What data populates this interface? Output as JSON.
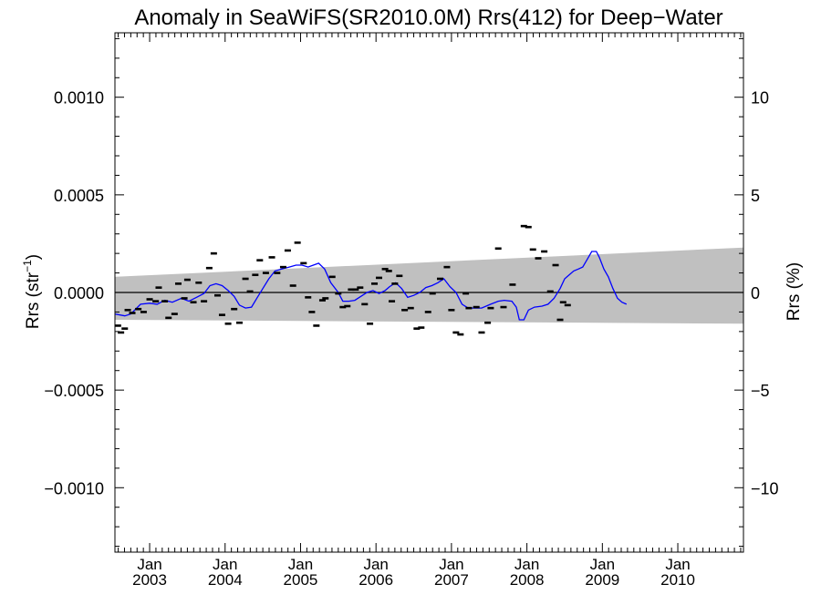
{
  "chart_data": {
    "type": "scatter",
    "title": "Anomaly in SeaWiFS(SR2010.0M) Rrs(412) for Deep−Water",
    "ylabel_left": "Rrs (str",
    "ylabel_left_sup": "−1",
    "ylabel_left_close": ")",
    "ylabel_right": "Rrs (%)",
    "xlim": [
      2002.54,
      2010.87
    ],
    "ylim": [
      -0.00133,
      0.00133
    ],
    "y2lim": [
      -13.3,
      13.3
    ],
    "grid": false,
    "x_tick_labels": [
      {
        "x": 2003.0,
        "month": "Jan",
        "year": "2003"
      },
      {
        "x": 2004.0,
        "month": "Jan",
        "year": "2004"
      },
      {
        "x": 2005.0,
        "month": "Jan",
        "year": "2005"
      },
      {
        "x": 2006.0,
        "month": "Jan",
        "year": "2006"
      },
      {
        "x": 2007.0,
        "month": "Jan",
        "year": "2007"
      },
      {
        "x": 2008.0,
        "month": "Jan",
        "year": "2008"
      },
      {
        "x": 2009.0,
        "month": "Jan",
        "year": "2009"
      },
      {
        "x": 2010.0,
        "month": "Jan",
        "year": "2010"
      }
    ],
    "y_left_ticks": [
      {
        "value": 0.001,
        "label": "0.0010"
      },
      {
        "value": 0.0005,
        "label": "0.0005"
      },
      {
        "value": 0.0,
        "label": "0.0000"
      },
      {
        "value": -0.0005,
        "label": "−0.0005"
      },
      {
        "value": -0.001,
        "label": "−0.0010"
      }
    ],
    "y_right_ticks": [
      {
        "value": 10,
        "label": "10"
      },
      {
        "value": 5,
        "label": "5"
      },
      {
        "value": 0,
        "label": "0"
      },
      {
        "value": -5,
        "label": "−5"
      },
      {
        "value": -10,
        "label": "−10"
      }
    ],
    "zero_line": 0.0,
    "uncertainty_band": {
      "x": [
        2002.54,
        2010.87
      ],
      "upper": [
        8e-05,
        0.00023
      ],
      "lower": [
        -0.00014,
        -0.00016
      ],
      "color": "#c0c0c0"
    },
    "series": [
      {
        "kind": "points",
        "color": "#000000",
        "points": [
          [
            2002.58,
            -0.00017
          ],
          [
            2002.62,
            -0.000205
          ],
          [
            2002.67,
            -0.000185
          ],
          [
            2002.71,
            -9e-05
          ],
          [
            2002.77,
            -0.000105
          ],
          [
            2002.85,
            -8.5e-05
          ],
          [
            2002.92,
            -0.0001
          ],
          [
            2003.0,
            -3.5e-05
          ],
          [
            2003.08,
            -4.5e-05
          ],
          [
            2003.12,
            2.5e-05
          ],
          [
            2003.2,
            -4.5e-05
          ],
          [
            2003.25,
            -0.00013
          ],
          [
            2003.33,
            -0.00011
          ],
          [
            2003.38,
            4.5e-05
          ],
          [
            2003.46,
            -3e-05
          ],
          [
            2003.5,
            6.5e-05
          ],
          [
            2003.58,
            -5e-05
          ],
          [
            2003.65,
            5e-05
          ],
          [
            2003.72,
            -4.5e-05
          ],
          [
            2003.79,
            0.000125
          ],
          [
            2003.85,
            0.0002
          ],
          [
            2003.9,
            -1.5e-05
          ],
          [
            2003.96,
            -0.000115
          ],
          [
            2004.04,
            -0.00016
          ],
          [
            2004.12,
            -8.5e-05
          ],
          [
            2004.19,
            -0.000155
          ],
          [
            2004.27,
            7e-05
          ],
          [
            2004.33,
            5e-06
          ],
          [
            2004.4,
            9e-05
          ],
          [
            2004.46,
            0.000165
          ],
          [
            2004.54,
            0.0001
          ],
          [
            2004.62,
            0.00018
          ],
          [
            2004.69,
            0.0001
          ],
          [
            2004.77,
            0.00013
          ],
          [
            2004.83,
            0.000215
          ],
          [
            2004.9,
            3.5e-05
          ],
          [
            2004.96,
            0.000255
          ],
          [
            2005.04,
            0.00015
          ],
          [
            2005.1,
            -2.5e-05
          ],
          [
            2005.15,
            -0.0001
          ],
          [
            2005.21,
            -0.00017
          ],
          [
            2005.29,
            -4e-05
          ],
          [
            2005.33,
            -3e-05
          ],
          [
            2005.42,
            8e-05
          ],
          [
            2005.5,
            -5e-06
          ],
          [
            2005.56,
            -7.5e-05
          ],
          [
            2005.62,
            -7e-05
          ],
          [
            2005.67,
            1.5e-05
          ],
          [
            2005.73,
            1.5e-05
          ],
          [
            2005.79,
            2.5e-05
          ],
          [
            2005.85,
            -6e-05
          ],
          [
            2005.92,
            -0.00016
          ],
          [
            2005.98,
            4.5e-05
          ],
          [
            2006.04,
            7.5e-05
          ],
          [
            2006.12,
            0.00012
          ],
          [
            2006.17,
            0.00011
          ],
          [
            2006.21,
            -4.5e-05
          ],
          [
            2006.25,
            4.5e-05
          ],
          [
            2006.31,
            8.5e-05
          ],
          [
            2006.38,
            -9e-05
          ],
          [
            2006.46,
            -8e-05
          ],
          [
            2006.54,
            -0.000185
          ],
          [
            2006.6,
            -0.00018
          ],
          [
            2006.69,
            -0.0001
          ],
          [
            2006.75,
            -5e-06
          ],
          [
            2006.85,
            7e-05
          ],
          [
            2006.94,
            0.00013
          ],
          [
            2007.0,
            -9e-05
          ],
          [
            2007.06,
            -0.000205
          ],
          [
            2007.12,
            -0.000215
          ],
          [
            2007.19,
            -5e-06
          ],
          [
            2007.23,
            -8e-05
          ],
          [
            2007.33,
            -7.5e-05
          ],
          [
            2007.4,
            -0.000205
          ],
          [
            2007.48,
            -0.000155
          ],
          [
            2007.52,
            -8e-05
          ],
          [
            2007.62,
            0.000225
          ],
          [
            2007.69,
            -7.5e-05
          ],
          [
            2007.81,
            4e-05
          ],
          [
            2007.96,
            0.00034
          ],
          [
            2008.02,
            0.000335
          ],
          [
            2008.08,
            0.00022
          ],
          [
            2008.15,
            0.000175
          ],
          [
            2008.23,
            0.00021
          ],
          [
            2008.31,
            5e-06
          ],
          [
            2008.38,
            0.00014
          ],
          [
            2008.44,
            -0.00014
          ],
          [
            2008.48,
            -5e-05
          ],
          [
            2008.54,
            -6.5e-05
          ]
        ]
      },
      {
        "kind": "line",
        "name": "",
        "color": "#0000ff",
        "points": [
          [
            2002.54,
            -0.00011
          ],
          [
            2002.67,
            -0.00012
          ],
          [
            2002.75,
            -0.00011
          ],
          [
            2002.88,
            -6e-05
          ],
          [
            2003.0,
            -5.5e-05
          ],
          [
            2003.1,
            -6e-05
          ],
          [
            2003.2,
            -4e-05
          ],
          [
            2003.3,
            -5e-05
          ],
          [
            2003.42,
            -3e-05
          ],
          [
            2003.52,
            -4.5e-05
          ],
          [
            2003.62,
            -2.5e-05
          ],
          [
            2003.72,
            -5e-06
          ],
          [
            2003.8,
            3.5e-05
          ],
          [
            2003.88,
            4.5e-05
          ],
          [
            2003.96,
            3.5e-05
          ],
          [
            2004.04,
            1e-05
          ],
          [
            2004.12,
            -2e-05
          ],
          [
            2004.19,
            -6.5e-05
          ],
          [
            2004.27,
            -8e-05
          ],
          [
            2004.35,
            -7.5e-05
          ],
          [
            2004.42,
            -3e-05
          ],
          [
            2004.5,
            2e-05
          ],
          [
            2004.58,
            7e-05
          ],
          [
            2004.66,
            0.00011
          ],
          [
            2004.75,
            0.00012
          ],
          [
            2004.85,
            0.00013
          ],
          [
            2004.94,
            0.00014
          ],
          [
            2005.02,
            0.00014
          ],
          [
            2005.1,
            0.00013
          ],
          [
            2005.17,
            0.00014
          ],
          [
            2005.24,
            0.00015
          ],
          [
            2005.32,
            0.00012
          ],
          [
            2005.4,
            5e-05
          ],
          [
            2005.5,
            0.0
          ],
          [
            2005.56,
            -4.5e-05
          ],
          [
            2005.64,
            -4.5e-05
          ],
          [
            2005.72,
            -4e-05
          ],
          [
            2005.8,
            -2e-05
          ],
          [
            2005.88,
            0.0
          ],
          [
            2005.96,
            1e-05
          ],
          [
            2006.04,
            -5e-06
          ],
          [
            2006.12,
            1e-05
          ],
          [
            2006.18,
            3e-05
          ],
          [
            2006.26,
            5e-05
          ],
          [
            2006.34,
            2e-05
          ],
          [
            2006.42,
            -2.5e-05
          ],
          [
            2006.5,
            -1.5e-05
          ],
          [
            2006.58,
            0.0
          ],
          [
            2006.66,
            2.5e-05
          ],
          [
            2006.74,
            3.5e-05
          ],
          [
            2006.82,
            5e-05
          ],
          [
            2006.9,
            7e-05
          ],
          [
            2006.98,
            3e-05
          ],
          [
            2007.06,
            0.0
          ],
          [
            2007.14,
            -6e-05
          ],
          [
            2007.22,
            -8e-05
          ],
          [
            2007.3,
            -8e-05
          ],
          [
            2007.4,
            -8e-05
          ],
          [
            2007.52,
            -6e-05
          ],
          [
            2007.62,
            -4.5e-05
          ],
          [
            2007.7,
            -4e-05
          ],
          [
            2007.8,
            -4.5e-05
          ],
          [
            2007.86,
            -7.5e-05
          ],
          [
            2007.9,
            -0.00014
          ],
          [
            2007.96,
            -0.00014
          ],
          [
            2008.02,
            -9e-05
          ],
          [
            2008.1,
            -7.5e-05
          ],
          [
            2008.2,
            -7e-05
          ],
          [
            2008.28,
            -6e-05
          ],
          [
            2008.36,
            -3e-05
          ],
          [
            2008.44,
            2e-05
          ],
          [
            2008.5,
            7e-05
          ],
          [
            2008.56,
            9e-05
          ],
          [
            2008.62,
            0.00011
          ],
          [
            2008.68,
            0.00012
          ],
          [
            2008.74,
            0.00013
          ],
          [
            2008.8,
            0.00017
          ],
          [
            2008.86,
            0.00021
          ],
          [
            2008.92,
            0.00021
          ],
          [
            2008.96,
            0.00018
          ],
          [
            2009.02,
            0.00012
          ],
          [
            2009.08,
            8e-05
          ],
          [
            2009.14,
            2e-05
          ],
          [
            2009.2,
            -3e-05
          ],
          [
            2009.26,
            -5e-05
          ],
          [
            2009.32,
            -6e-05
          ]
        ]
      }
    ]
  }
}
